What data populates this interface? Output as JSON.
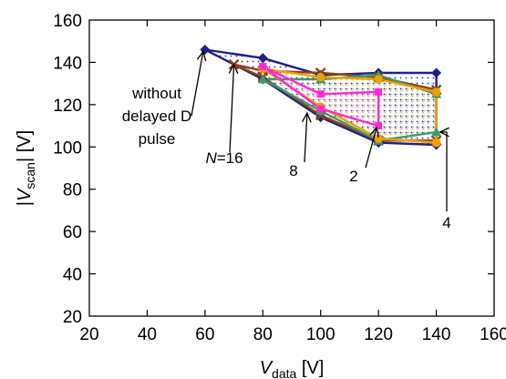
{
  "chart_data": {
    "type": "line",
    "xlabel": {
      "main": "V",
      "sub": "data",
      "unit": " [V]"
    },
    "ylabel": {
      "pre": "|",
      "main": "V",
      "sub": "scan",
      "post": "| [V]"
    },
    "xlim": [
      20,
      160
    ],
    "ylim": [
      20,
      160
    ],
    "xticks": [
      "20",
      "40",
      "60",
      "80",
      "100",
      "120",
      "140",
      "160"
    ],
    "yticks": [
      "20",
      "40",
      "60",
      "80",
      "100",
      "120",
      "140",
      "160"
    ],
    "grid": false,
    "series": [
      {
        "color": "#1f1f8c",
        "marker": "diamond",
        "fill": "#2a2a9c",
        "fill_pattern": "dots",
        "points": [
          [
            60,
            146
          ],
          [
            80,
            142
          ],
          [
            100,
            134
          ],
          [
            120,
            135
          ],
          [
            140,
            135
          ],
          [
            140,
            101
          ],
          [
            120,
            102
          ],
          [
            100,
            114
          ],
          [
            80,
            132
          ],
          [
            60,
            146
          ]
        ]
      },
      {
        "color": "#8b4513",
        "marker": "x",
        "fill": "#e8a0a0",
        "fill_pattern": "dots",
        "points": [
          [
            70,
            139
          ],
          [
            80,
            136
          ],
          [
            100,
            135
          ],
          [
            120,
            133
          ],
          [
            140,
            127
          ],
          [
            140,
            103
          ],
          [
            120,
            103
          ],
          [
            100,
            115
          ],
          [
            80,
            133
          ],
          [
            70,
            139
          ]
        ]
      },
      {
        "color": "#3a9a6a",
        "marker": "triangle",
        "fill": "#9ad6b0",
        "fill_pattern": "dots",
        "points": [
          [
            80,
            132
          ],
          [
            100,
            132
          ],
          [
            120,
            134
          ],
          [
            140,
            125
          ],
          [
            140,
            107
          ],
          [
            120,
            103
          ],
          [
            100,
            117
          ],
          [
            80,
            132
          ]
        ]
      },
      {
        "color": "#f0a000",
        "marker": "circle",
        "fill": "#ffd27f",
        "fill_pattern": "dots",
        "points": [
          [
            80,
            137
          ],
          [
            100,
            133
          ],
          [
            120,
            132
          ],
          [
            140,
            126
          ],
          [
            140,
            102
          ],
          [
            120,
            104
          ],
          [
            100,
            119
          ],
          [
            80,
            137
          ]
        ]
      },
      {
        "color": "#ff2ad4",
        "marker": "square",
        "fill": "#ff9ae6",
        "fill_pattern": "dots",
        "points": [
          [
            80,
            138
          ],
          [
            100,
            125
          ],
          [
            120,
            126
          ],
          [
            120,
            110
          ],
          [
            100,
            118
          ],
          [
            80,
            138
          ]
        ]
      }
    ],
    "annotations": [
      {
        "text": [
          "without",
          "delayed D",
          "pulse"
        ],
        "arrow_to": [
          60,
          146
        ]
      },
      {
        "text": [
          "N=16"
        ],
        "italic_part": "N",
        "arrow_to": [
          70,
          139
        ]
      },
      {
        "text": [
          "8"
        ],
        "arrow_to": [
          95,
          116
        ]
      },
      {
        "text": [
          "2"
        ],
        "arrow_to": [
          120,
          110
        ]
      },
      {
        "text": [
          "4"
        ],
        "arrow_to": [
          141,
          107
        ]
      }
    ]
  }
}
